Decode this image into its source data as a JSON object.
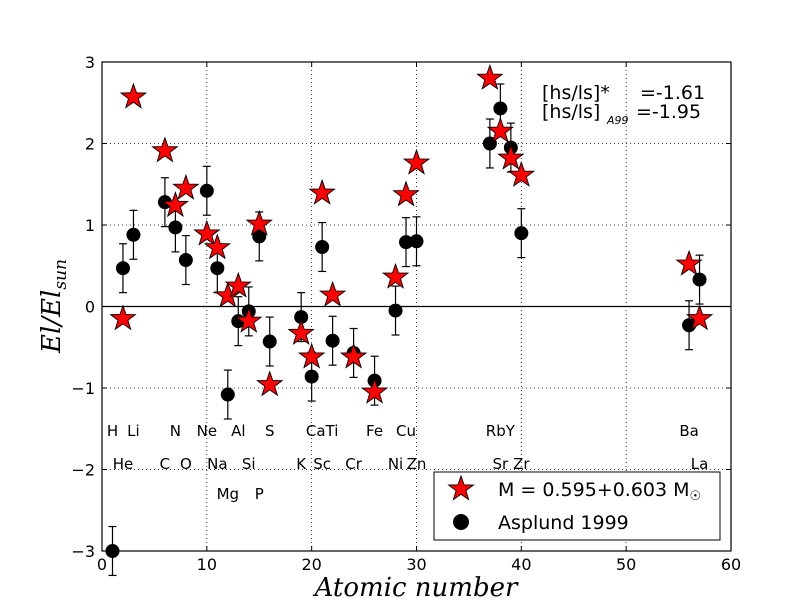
{
  "chart_data": {
    "type": "scatter",
    "xlabel": "Atomic number",
    "ylabel": "El/El_sun",
    "xlim": [
      0,
      60
    ],
    "ylim": [
      -3,
      3
    ],
    "xticks": [
      "0",
      "10",
      "20",
      "30",
      "40",
      "50",
      "60"
    ],
    "yticks": [
      "−3",
      "−2",
      "−1",
      "0",
      "1",
      "2",
      "3"
    ],
    "grid": "dotted",
    "reference_line_y": 0,
    "annotation": {
      "line1_label": "[hs/ls]*",
      "line1_value": "=-1.61",
      "line2_label": "[hs/ls]",
      "line2_sub": "A99",
      "line2_value": "=-1.95"
    },
    "legend_position": "lower-right",
    "element_labels": [
      {
        "text": "H",
        "x": 1,
        "row": 1
      },
      {
        "text": "Li",
        "x": 3,
        "row": 1
      },
      {
        "text": "N",
        "x": 7,
        "row": 1
      },
      {
        "text": "Ne",
        "x": 10,
        "row": 1
      },
      {
        "text": "Al",
        "x": 13,
        "row": 1
      },
      {
        "text": "S",
        "x": 16,
        "row": 1
      },
      {
        "text": "CaTi",
        "x": 21,
        "row": 1
      },
      {
        "text": "Fe",
        "x": 26,
        "row": 1
      },
      {
        "text": "Cu",
        "x": 29,
        "row": 1
      },
      {
        "text": "RbY",
        "x": 38,
        "row": 1
      },
      {
        "text": "Ba",
        "x": 56,
        "row": 1
      },
      {
        "text": "He",
        "x": 2,
        "row": 2
      },
      {
        "text": "C",
        "x": 6,
        "row": 2
      },
      {
        "text": "O",
        "x": 8,
        "row": 2
      },
      {
        "text": "Na",
        "x": 11,
        "row": 2
      },
      {
        "text": "Si",
        "x": 14,
        "row": 2
      },
      {
        "text": "K",
        "x": 19,
        "row": 2
      },
      {
        "text": "Sc",
        "x": 21,
        "row": 2
      },
      {
        "text": "Cr",
        "x": 24,
        "row": 2
      },
      {
        "text": "Ni",
        "x": 28,
        "row": 2
      },
      {
        "text": "Zn",
        "x": 30,
        "row": 2
      },
      {
        "text": "Sr",
        "x": 38,
        "row": 2
      },
      {
        "text": "Zr",
        "x": 40,
        "row": 2
      },
      {
        "text": "La",
        "x": 57,
        "row": 2
      },
      {
        "text": "Mg",
        "x": 12,
        "row": 3
      },
      {
        "text": "P",
        "x": 15,
        "row": 3
      }
    ],
    "series": [
      {
        "name": "M = 0.595+0.603 M",
        "name_suffix": "☉",
        "marker": "star",
        "color": "#ff0000",
        "points": [
          {
            "x": 2,
            "y": -0.15
          },
          {
            "x": 3,
            "y": 2.57
          },
          {
            "x": 6,
            "y": 1.91
          },
          {
            "x": 7,
            "y": 1.24
          },
          {
            "x": 8,
            "y": 1.45
          },
          {
            "x": 10,
            "y": 0.89
          },
          {
            "x": 11,
            "y": 0.72
          },
          {
            "x": 12,
            "y": 0.13
          },
          {
            "x": 13,
            "y": 0.25
          },
          {
            "x": 14,
            "y": -0.18
          },
          {
            "x": 15,
            "y": 1.01
          },
          {
            "x": 16,
            "y": -0.96
          },
          {
            "x": 19,
            "y": -0.33
          },
          {
            "x": 20,
            "y": -0.62
          },
          {
            "x": 21,
            "y": 1.39
          },
          {
            "x": 22,
            "y": 0.14
          },
          {
            "x": 24,
            "y": -0.62
          },
          {
            "x": 26,
            "y": -1.05
          },
          {
            "x": 28,
            "y": 0.36
          },
          {
            "x": 29,
            "y": 1.37
          },
          {
            "x": 30,
            "y": 1.76
          },
          {
            "x": 37,
            "y": 2.8
          },
          {
            "x": 38,
            "y": 2.15
          },
          {
            "x": 39,
            "y": 1.82
          },
          {
            "x": 40,
            "y": 1.61
          },
          {
            "x": 56,
            "y": 0.52
          },
          {
            "x": 57,
            "y": -0.15
          }
        ]
      },
      {
        "name": "Asplund 1999",
        "marker": "circle",
        "color": "#000000",
        "points": [
          {
            "x": 1,
            "y": -3.0,
            "err": 0.3
          },
          {
            "x": 2,
            "y": 0.47,
            "err": 0.3
          },
          {
            "x": 3,
            "y": 0.88,
            "err": 0.3
          },
          {
            "x": 6,
            "y": 1.28,
            "err": 0.3
          },
          {
            "x": 7,
            "y": 0.97,
            "err": 0.3
          },
          {
            "x": 8,
            "y": 0.57,
            "err": 0.3
          },
          {
            "x": 10,
            "y": 1.42,
            "err": 0.3
          },
          {
            "x": 11,
            "y": 0.47,
            "err": 0.3
          },
          {
            "x": 12,
            "y": -1.08,
            "err": 0.3
          },
          {
            "x": 13,
            "y": -0.18,
            "err": 0.3
          },
          {
            "x": 14,
            "y": -0.06,
            "err": 0.3
          },
          {
            "x": 15,
            "y": 0.86,
            "err": 0.3
          },
          {
            "x": 16,
            "y": -0.43,
            "err": 0.3
          },
          {
            "x": 19,
            "y": -0.13,
            "err": 0.3
          },
          {
            "x": 20,
            "y": -0.86,
            "err": 0.3
          },
          {
            "x": 21,
            "y": 0.73,
            "err": 0.3
          },
          {
            "x": 22,
            "y": -0.42,
            "err": 0.3
          },
          {
            "x": 24,
            "y": -0.57,
            "err": 0.3
          },
          {
            "x": 26,
            "y": -0.91,
            "err": 0.3
          },
          {
            "x": 28,
            "y": -0.05,
            "err": 0.3
          },
          {
            "x": 29,
            "y": 0.79,
            "err": 0.3
          },
          {
            "x": 30,
            "y": 0.8,
            "err": 0.3
          },
          {
            "x": 37,
            "y": 2.0,
            "err": 0.3
          },
          {
            "x": 38,
            "y": 2.43,
            "err": 0.3
          },
          {
            "x": 39,
            "y": 1.95,
            "err": 0.3
          },
          {
            "x": 40,
            "y": 0.9,
            "err": 0.3
          },
          {
            "x": 56,
            "y": -0.23,
            "err": 0.3
          },
          {
            "x": 57,
            "y": 0.33,
            "err": 0.3
          }
        ]
      }
    ]
  }
}
